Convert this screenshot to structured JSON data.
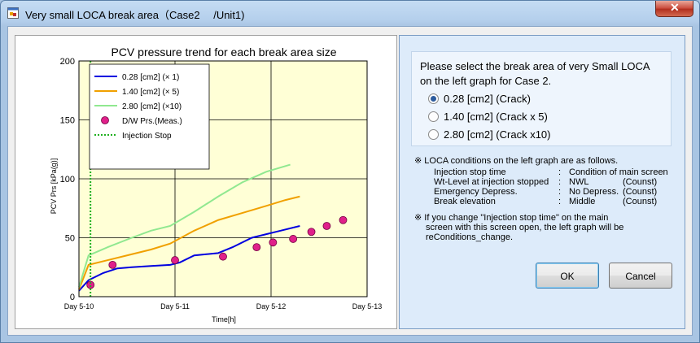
{
  "window": {
    "title": "Very small LOCA break area（Case2　 /Unit1)",
    "close_label": "✕"
  },
  "chart_data": {
    "type": "line",
    "title": "PCV pressure trend for each break area size",
    "xlabel": "Time[h]",
    "ylabel": "PCV Prs [kPa(g)]",
    "x_ticks": [
      "Day 5-10",
      "Day 5-11",
      "Day 5-12",
      "Day 5-13"
    ],
    "xlim": [
      0,
      3
    ],
    "ylim": [
      0,
      200
    ],
    "y_ticks": [
      0,
      50,
      100,
      150,
      200
    ],
    "grid": true,
    "legend_position": "top-left",
    "series": [
      {
        "name": "0.28 [cm2] (× 1)",
        "color": "#0000e0",
        "x": [
          0.0,
          0.1,
          0.25,
          0.4,
          0.55,
          0.75,
          0.95,
          1.05,
          1.2,
          1.45,
          1.6,
          1.8,
          1.95,
          2.1,
          2.3
        ],
        "y": [
          5,
          14,
          20,
          24,
          25,
          26,
          27,
          29,
          35,
          37,
          42,
          50,
          53,
          56,
          60
        ]
      },
      {
        "name": "1.40 [cm2] (× 5)",
        "color": "#f0a000",
        "x": [
          0.0,
          0.1,
          0.3,
          0.5,
          0.75,
          0.95,
          1.2,
          1.45,
          1.7,
          1.95,
          2.15,
          2.3
        ],
        "y": [
          6,
          27,
          31,
          35,
          40,
          45,
          56,
          65,
          71,
          77,
          82,
          85
        ]
      },
      {
        "name": "2.80 [cm2] (×10)",
        "color": "#90e890",
        "x": [
          0.0,
          0.1,
          0.3,
          0.55,
          0.75,
          0.95,
          1.2,
          1.45,
          1.7,
          1.95,
          2.2
        ],
        "y": [
          8,
          35,
          42,
          50,
          56,
          60,
          72,
          85,
          97,
          106,
          112
        ]
      },
      {
        "name": "D/W Prs.(Meas.)",
        "color": "#e0208a",
        "marker": "circle",
        "x": [
          0.12,
          0.35,
          1.0,
          1.5,
          1.85,
          2.02,
          2.23,
          2.42,
          2.58,
          2.75
        ],
        "y": [
          10,
          27,
          31,
          34,
          42,
          46,
          49,
          55,
          60,
          65
        ]
      },
      {
        "name": "Injection Stop",
        "color": "#20b020",
        "style": "dotted",
        "x": [
          0.12,
          0.12
        ],
        "y": [
          0,
          200
        ]
      }
    ]
  },
  "selection": {
    "instruction_line1": "Please select the break area of very Small LOCA",
    "instruction_line2": "on the left graph for Case 2.",
    "options": [
      {
        "label": "0.28 [cm2] (Crack)",
        "checked": true
      },
      {
        "label": "1.40 [cm2] (Crack x 5)",
        "checked": false
      },
      {
        "label": "2.80 [cm2] (Crack x10)",
        "checked": false
      }
    ]
  },
  "conditions": {
    "heading": "※ LOCA conditions on the left graph are as follows.",
    "rows": [
      {
        "name": "Injection stop time",
        "sep": ":",
        "value": "Condition of main screen",
        "note": ""
      },
      {
        "name": "Wt-Level at injection stopped",
        "sep": ":",
        "value": "NWL",
        "note": "(Counst)"
      },
      {
        "name": "Emergency Depress.",
        "sep": ":",
        "value": "No Depress.",
        "note": "(Counst)"
      },
      {
        "name": "Break elevation",
        "sep": ":",
        "value": "Middle",
        "note": "(Counst)"
      }
    ],
    "note_line1": "※ If you change \"Injection stop time\" on the main",
    "note_line2": "screen with this screen open, the left graph will be",
    "note_line3": "reConditions_change."
  },
  "buttons": {
    "ok": "OK",
    "cancel": "Cancel"
  }
}
